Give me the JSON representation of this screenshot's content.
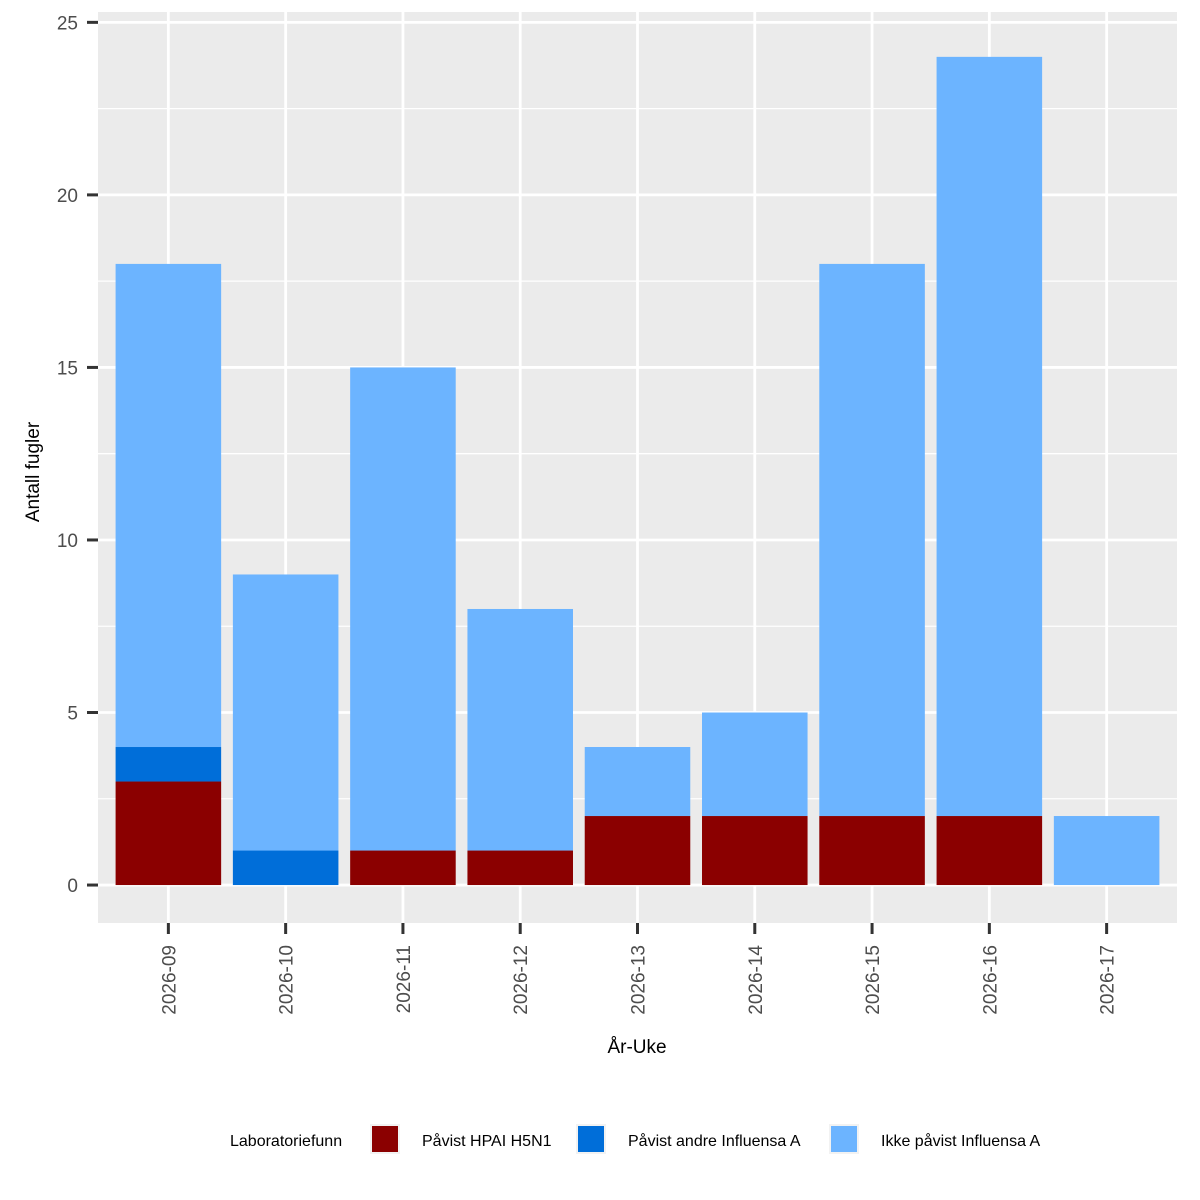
{
  "chart_data": {
    "type": "bar",
    "stacked": true,
    "title": "",
    "xlabel": "År-Uke",
    "ylabel": "Antall fugler",
    "ylim": [
      -1.1,
      25.3
    ],
    "yticks": [
      0,
      5,
      10,
      15,
      20,
      25
    ],
    "grid": true,
    "categories": [
      "2026-09",
      "2026-10",
      "2026-11",
      "2026-12",
      "2026-13",
      "2026-14",
      "2026-15",
      "2026-16",
      "2026-17"
    ],
    "series": [
      {
        "name": "Påvist HPAI H5N1",
        "color": "#8B0000",
        "values": [
          3,
          0,
          1,
          1,
          2,
          2,
          2,
          2,
          0
        ]
      },
      {
        "name": "Påvist andre Influensa A",
        "color": "#006ED9",
        "values": [
          1,
          1,
          0,
          0,
          0,
          0,
          0,
          0,
          0
        ]
      },
      {
        "name": "Ikke påvist Influensa A",
        "color": "#6CB4FF",
        "values": [
          14,
          8,
          14,
          7,
          2,
          3,
          16,
          22,
          2
        ]
      }
    ],
    "legend": {
      "title": "Laboratoriefunn",
      "position": "bottom"
    }
  },
  "colors": {
    "panel": "#EBEBEB",
    "grid": "#FFFFFF",
    "tick": "#333333"
  }
}
